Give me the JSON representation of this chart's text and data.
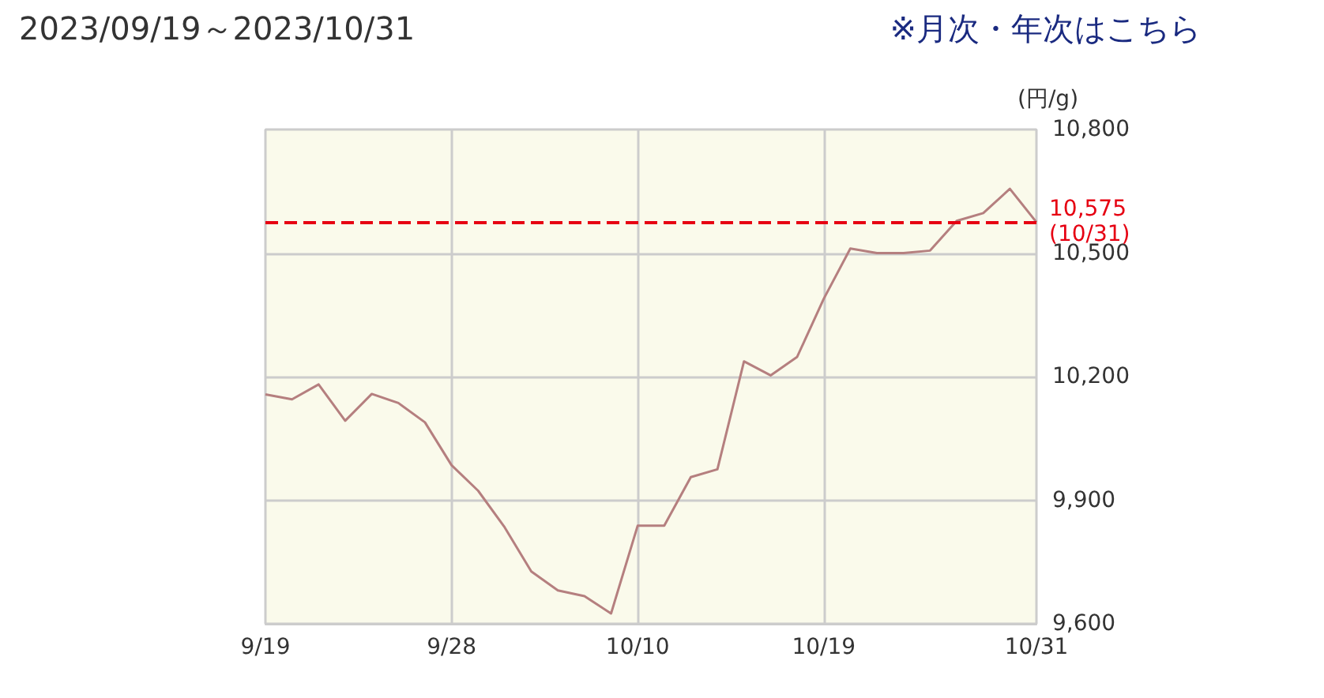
{
  "chart_data": {
    "type": "line",
    "title": "2023/09/19～2023/10/31",
    "ylabel": "(円/g)",
    "annotations": [
      "※月次・年次はこちら"
    ],
    "categories": [
      "9/19",
      null,
      null,
      null,
      null,
      null,
      null,
      "9/28",
      null,
      null,
      null,
      null,
      null,
      null,
      "10/10",
      null,
      null,
      null,
      null,
      null,
      null,
      "10/19",
      null,
      null,
      null,
      null,
      null,
      null,
      null,
      "10/31"
    ],
    "series": [
      {
        "color": "#b57f7f",
        "values": [
          10157,
          10145,
          10181,
          10093,
          10158,
          10136,
          10089,
          9985,
          9923,
          9834,
          9727,
          9681,
          9667,
          9625,
          9838,
          9838,
          9956,
          9975,
          10237,
          10203,
          10248,
          10389,
          10511,
          10500,
          10500,
          10506,
          10578,
          10597,
          10656,
          10575
        ]
      }
    ],
    "ylim": [
      9600,
      10800
    ],
    "yticks": [
      {
        "value": 9600,
        "label": "9,600"
      },
      {
        "value": 9900,
        "label": "9,900"
      },
      {
        "value": 10200,
        "label": "10,200"
      },
      {
        "value": 10500,
        "label": "10,500"
      },
      {
        "value": 10800,
        "label": "10,800"
      }
    ],
    "ref_lines": [
      {
        "axis": "y",
        "value": 10575,
        "label": "10,575\n(10/31)",
        "color": "#e60012",
        "line_style": "dashed"
      }
    ],
    "grid": true,
    "marker": "none",
    "line_style": "solid"
  }
}
